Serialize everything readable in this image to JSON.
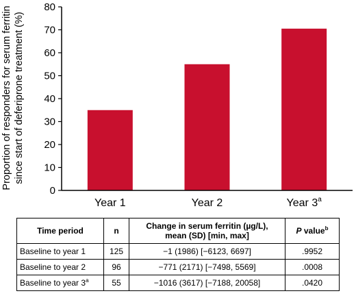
{
  "chart_data": {
    "type": "bar",
    "categories": [
      "Year 1",
      "Year 2",
      "Year 3"
    ],
    "category_superscripts": [
      "",
      "",
      "a"
    ],
    "values": [
      35,
      55,
      70.5
    ],
    "ylabel_line1": "Proportion of responders for serum ferritin",
    "ylabel_line2": "since start of deferiprone treatment (%)",
    "ylim": [
      0,
      80
    ],
    "yticks": [
      "0",
      "10",
      "20",
      "30",
      "40",
      "50",
      "60",
      "70",
      "80"
    ],
    "bar_color": "#c8102e",
    "grid": false
  },
  "table": {
    "headers": {
      "time_period": "Time period",
      "n": "n",
      "change_line1": "Change in serum ferritin (µg/L),",
      "change_line2": "mean (SD) [min, max]",
      "pvalue_italic": "P",
      "pvalue_rest": " value",
      "pvalue_sup": "b"
    },
    "rows": [
      {
        "period": "Baseline to year 1",
        "period_sup": "",
        "n": "125",
        "change": "−1 (1986) [−6123, 6697]",
        "p": ".9952"
      },
      {
        "period": "Baseline to year 2",
        "period_sup": "",
        "n": "96",
        "change": "−771 (2171) [−7498, 5569]",
        "p": ".0008"
      },
      {
        "period": "Baseline to year 3",
        "period_sup": "a",
        "n": "55",
        "change": "−1016 (3617) [−7188, 20058]",
        "p": ".0420"
      }
    ]
  }
}
